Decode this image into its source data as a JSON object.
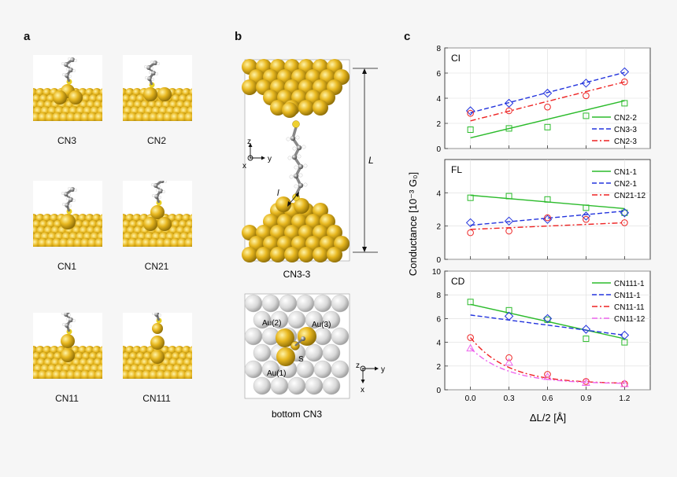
{
  "panels": {
    "a": {
      "letter": "a",
      "labels": [
        "CN3",
        "CN2",
        "CN1",
        "CN21",
        "CN11",
        "CN111"
      ]
    },
    "b": {
      "letter": "b",
      "top_caption": "CN3-3",
      "bottom_caption": "bottom CN3",
      "axis_z": "z",
      "axis_y": "y",
      "axis_x": "x",
      "length_label": "L",
      "bond_label": "l",
      "atoms": [
        "Au(2)",
        "Au(3)",
        "Au(1)",
        "S"
      ]
    },
    "c": {
      "letter": "c"
    }
  },
  "colors": {
    "gold": "#e8b820",
    "gold_dark": "#b08a10",
    "silver": "#d6d6d6",
    "green": "#2bbb2b",
    "blue": "#2233dd",
    "red": "#ee2222",
    "magenta": "#ee66ee"
  },
  "chart_data": [
    {
      "type": "line",
      "panel": "CI",
      "title": "CI",
      "ylim": [
        0,
        8
      ],
      "yticks": [
        "0",
        "2",
        "4",
        "6",
        "8"
      ],
      "x": [
        0.0,
        0.3,
        0.6,
        0.9,
        1.2
      ],
      "series": [
        {
          "name": "CN2-2",
          "color": "#2bbb2b",
          "dash": "solid",
          "marker": "square",
          "points": [
            1.5,
            1.6,
            1.7,
            2.6,
            3.6
          ],
          "fit": [
            0.85,
            3.8
          ]
        },
        {
          "name": "CN3-3",
          "color": "#2233dd",
          "dash": "dash",
          "marker": "diamond",
          "points": [
            3.0,
            3.6,
            4.4,
            5.2,
            6.1
          ],
          "fit": [
            2.85,
            6.05
          ]
        },
        {
          "name": "CN2-3",
          "color": "#ee2222",
          "dash": "dashdot",
          "marker": "circle",
          "points": [
            2.8,
            3.0,
            3.3,
            4.2,
            5.3
          ],
          "fit": [
            2.2,
            5.3
          ]
        }
      ]
    },
    {
      "type": "line",
      "panel": "FL",
      "title": "FL",
      "ylim": [
        0,
        6
      ],
      "yticks": [
        "0",
        "2",
        "4"
      ],
      "x": [
        0.0,
        0.3,
        0.6,
        0.9,
        1.2
      ],
      "series": [
        {
          "name": "CN1-1",
          "color": "#2bbb2b",
          "dash": "solid",
          "marker": "square",
          "points": [
            3.7,
            3.8,
            3.6,
            3.1,
            2.8
          ],
          "fit": [
            3.85,
            3.05
          ]
        },
        {
          "name": "CN2-1",
          "color": "#2233dd",
          "dash": "dash",
          "marker": "diamond",
          "points": [
            2.2,
            2.3,
            2.4,
            2.6,
            2.8
          ],
          "fit": [
            2.05,
            2.9
          ]
        },
        {
          "name": "CN21-12",
          "color": "#ee2222",
          "dash": "dashdot",
          "marker": "circle",
          "points": [
            1.6,
            1.7,
            2.5,
            2.4,
            2.2
          ],
          "fit": [
            1.8,
            2.2
          ]
        }
      ]
    },
    {
      "type": "line",
      "panel": "CD",
      "title": "CD",
      "ylim": [
        0,
        10
      ],
      "yticks": [
        "0",
        "2",
        "4",
        "6",
        "8",
        "10"
      ],
      "x": [
        0.0,
        0.3,
        0.6,
        0.9,
        1.2
      ],
      "xticks": [
        "0.0",
        "0.3",
        "0.6",
        "0.9",
        "1.2"
      ],
      "xlabel": "ΔL/2 [Å]",
      "series": [
        {
          "name": "CN111-1",
          "color": "#2bbb2b",
          "dash": "solid",
          "marker": "square",
          "points": [
            7.4,
            6.7,
            5.9,
            4.3,
            4.0
          ],
          "fit": [
            7.2,
            4.3
          ]
        },
        {
          "name": "CN11-1",
          "color": "#2233dd",
          "dash": "dash",
          "marker": "diamond",
          "points": [
            null,
            6.2,
            6.0,
            5.1,
            4.6
          ],
          "fit": [
            6.3,
            4.6
          ]
        },
        {
          "name": "CN11-11",
          "color": "#ee2222",
          "dash": "dashdot",
          "marker": "circle",
          "points": [
            4.4,
            2.7,
            1.3,
            0.7,
            0.5
          ],
          "fit": null
        },
        {
          "name": "CN11-12",
          "color": "#ee66ee",
          "dash": "dashdot",
          "marker": "triangle",
          "points": [
            3.5,
            2.3,
            1.1,
            0.6,
            0.5
          ],
          "fit": null
        }
      ]
    }
  ],
  "ylabel": "Conductance [10⁻³ G₀]"
}
